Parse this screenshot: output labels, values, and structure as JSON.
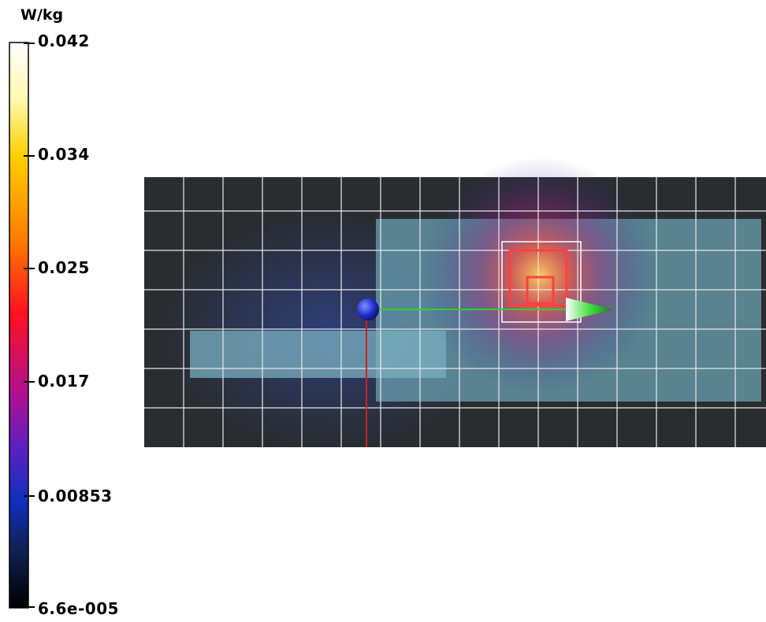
{
  "colorbar": {
    "unit": "W/kg",
    "labels": [
      "0.042",
      "0.034",
      "0.025",
      "0.017",
      "0.00853",
      "6.6e-005"
    ]
  }
}
